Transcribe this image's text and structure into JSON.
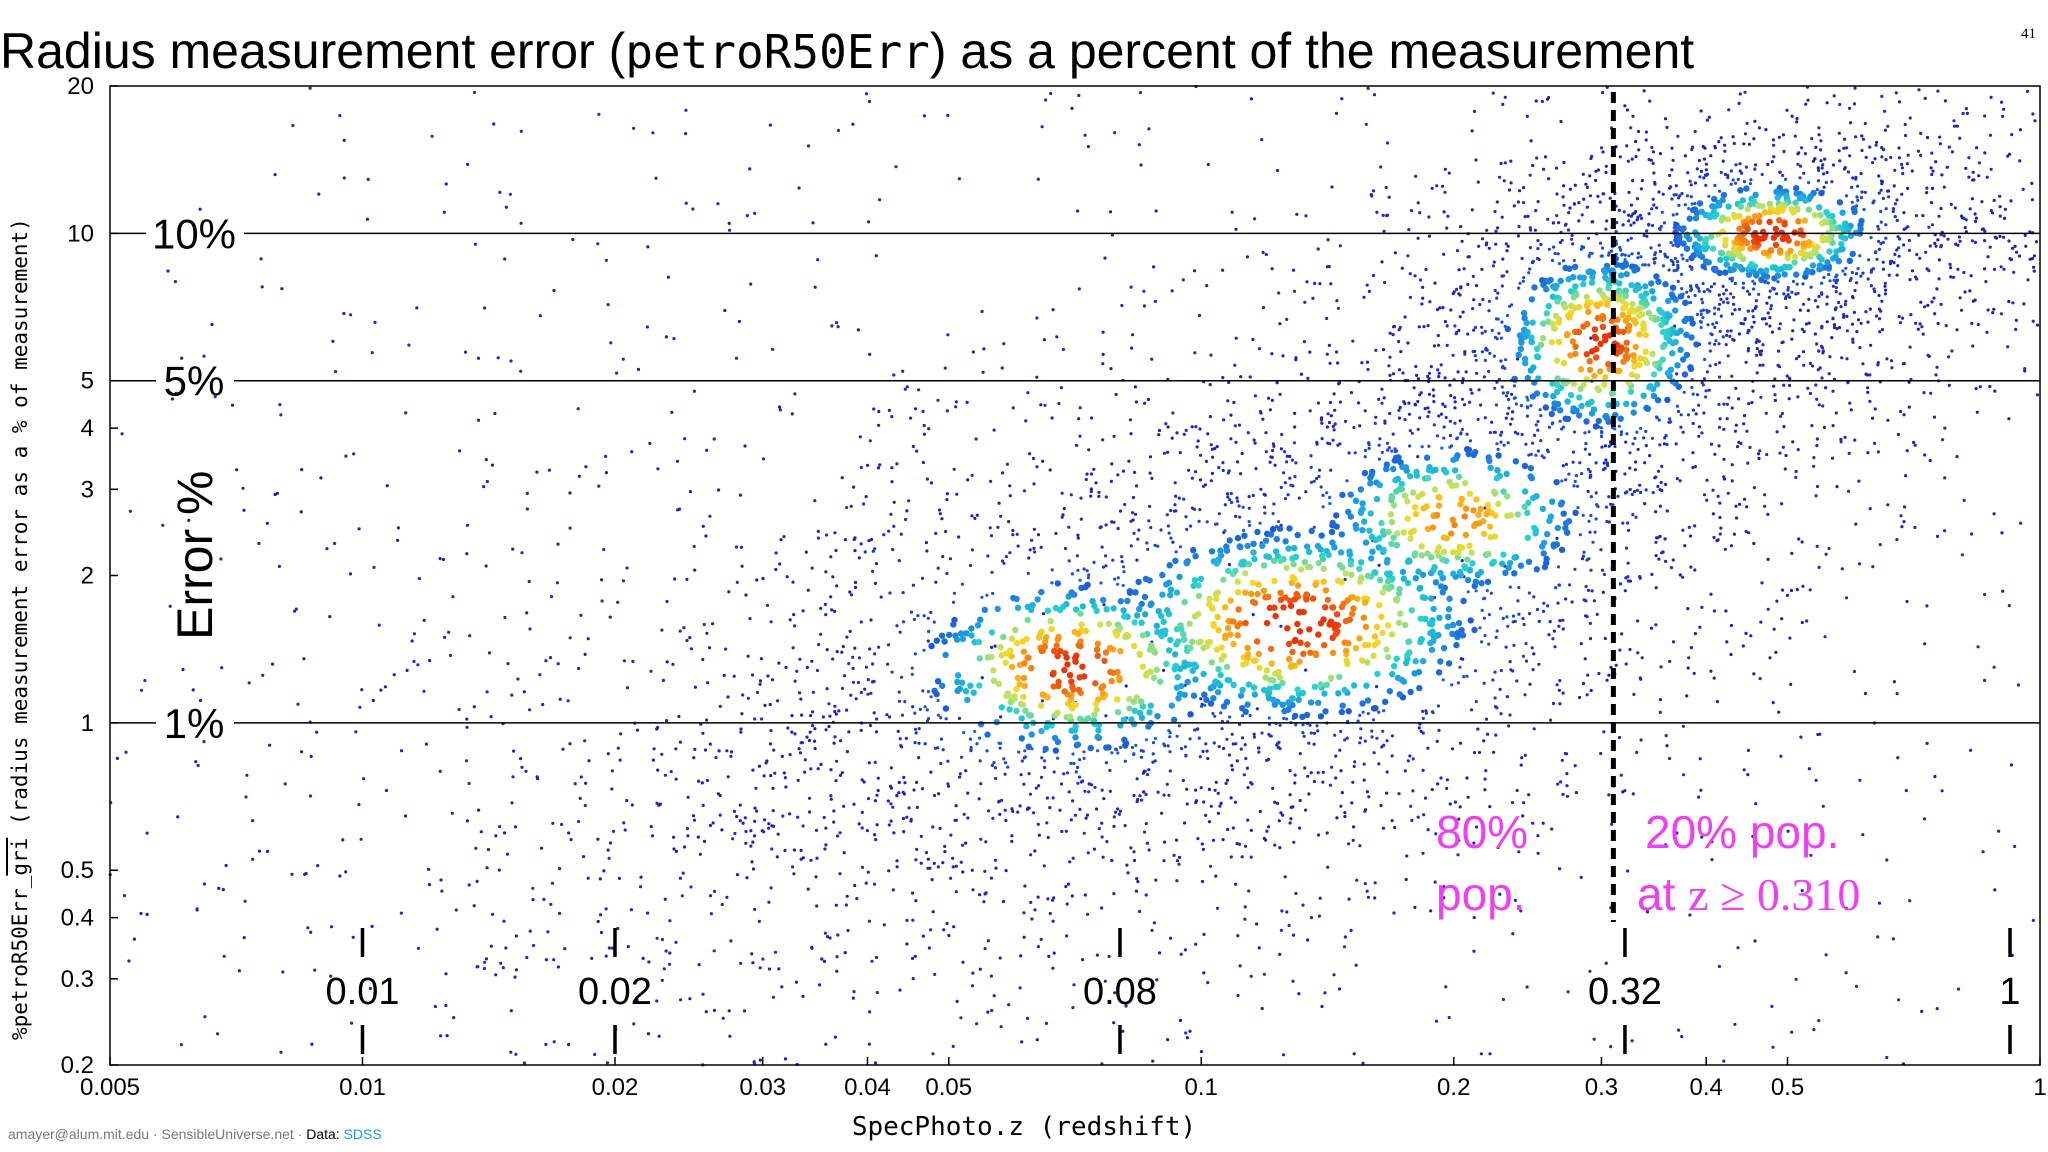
{
  "title": {
    "prefix": "Radius measurement error (",
    "code": "petroR50Err",
    "suffix": ") as a percent of the measurement"
  },
  "page_number": "41",
  "y_axis_label": {
    "prefix": "%petroR50Err_",
    "overline": "gri",
    "suffix": " (radius measurement error as a % of measurement)"
  },
  "x_axis_label": "SpecPhoto.z (redshift)",
  "footer": {
    "author": "amayer@alum.mit.edu · SensibleUniverse.net · ",
    "data_prefix": "Data: ",
    "data_source": "SDSS"
  },
  "error_axis_text": "Error %",
  "annotations": {
    "left_pop_line1": "80%",
    "left_pop_line2": "pop.",
    "right_pop_line1": "20% pop.",
    "right_pop_line2_prefix": "at ",
    "right_pop_line2_math": "z ≥ 0.310"
  },
  "colors": {
    "annotation": "#ee3ff0",
    "density_low": "#1f1fb0",
    "density_high": "#e8340a"
  },
  "chart_data": {
    "type": "scatter",
    "style": "density-colored scatter (heat map of point density)",
    "x_scale": "log",
    "y_scale": "log",
    "xlim": [
      0.005,
      1
    ],
    "ylim": [
      0.2,
      20
    ],
    "x_ticks": [
      0.005,
      0.01,
      0.02,
      0.03,
      0.04,
      0.05,
      0.1,
      0.2,
      0.3,
      0.4,
      0.5,
      1
    ],
    "x_tick_labels": [
      "0.005",
      "0.01",
      "0.02",
      "0.03",
      "0.04",
      "0.05",
      "0.1",
      "0.2",
      "0.3",
      "0.4",
      "0.5",
      "1"
    ],
    "y_ticks": [
      0.2,
      0.3,
      0.4,
      0.5,
      1,
      2,
      3,
      4,
      5,
      10,
      20
    ],
    "y_tick_labels": [
      "0.2",
      "0.3",
      "0.4",
      "0.5",
      "1",
      "2",
      "3",
      "4",
      "5",
      "10",
      "20"
    ],
    "reference_lines": [
      {
        "y": 10,
        "label": "10%"
      },
      {
        "y": 5,
        "label": "5%"
      },
      {
        "y": 1,
        "label": "1%"
      }
    ],
    "redshift_markers": [
      {
        "x": 0.01,
        "label": "0.01"
      },
      {
        "x": 0.02,
        "label": "0.02"
      },
      {
        "x": 0.08,
        "label": "0.08"
      },
      {
        "x": 0.32,
        "label": "0.32"
      },
      {
        "x": 1,
        "label": "1"
      }
    ],
    "split_line_x": 0.31,
    "density_peaks": [
      {
        "z": 0.07,
        "error_pct": 1.3
      },
      {
        "z": 0.13,
        "error_pct": 1.6
      },
      {
        "z": 0.3,
        "error_pct": 6.0
      },
      {
        "z": 0.48,
        "error_pct": 10.0
      }
    ]
  }
}
